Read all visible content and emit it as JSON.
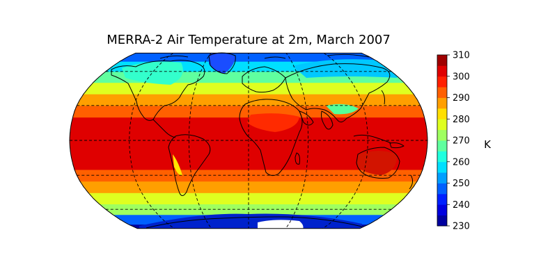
{
  "figure": {
    "title": "MERRA-2 Air Temperature at 2m, March 2007"
  },
  "chart_data": {
    "type": "heatmap",
    "projection": "Robinson",
    "title": "MERRA-2 Air Temperature at 2m, March 2007",
    "variable": "Air Temperature at 2m",
    "colormap": "jet",
    "colorbar": {
      "label": "K",
      "ticks": [
        "230",
        "240",
        "250",
        "260",
        "270",
        "280",
        "290",
        "300",
        "310"
      ],
      "range": [
        230,
        310
      ],
      "levels": [
        230,
        235,
        240,
        245,
        250,
        255,
        260,
        265,
        270,
        275,
        280,
        285,
        290,
        295,
        300,
        305,
        310
      ],
      "placement": "right"
    },
    "gridlines": {
      "parallels_deg": [
        -60,
        -30,
        0,
        30,
        60
      ],
      "meridians_deg": [
        -120,
        -60,
        0,
        60,
        120
      ],
      "style": "dashed"
    },
    "zonal_bands": [
      {
        "lat_range": [
          -90,
          -75
        ],
        "value": 232
      },
      {
        "lat_range": [
          -75,
          -65
        ],
        "value": 248
      },
      {
        "lat_range": [
          -65,
          -55
        ],
        "value": 270
      },
      {
        "lat_range": [
          -55,
          -45
        ],
        "value": 278
      },
      {
        "lat_range": [
          -45,
          -35
        ],
        "value": 286
      },
      {
        "lat_range": [
          -35,
          -25
        ],
        "value": 292
      },
      {
        "lat_range": [
          -25,
          20
        ],
        "value": 300
      },
      {
        "lat_range": [
          20,
          30
        ],
        "value": 294
      },
      {
        "lat_range": [
          30,
          40
        ],
        "value": 287
      },
      {
        "lat_range": [
          40,
          50
        ],
        "value": 278
      },
      {
        "lat_range": [
          50,
          60
        ],
        "value": 268
      },
      {
        "lat_range": [
          60,
          70
        ],
        "value": 258
      },
      {
        "lat_range": [
          70,
          90
        ],
        "value": 247
      }
    ],
    "colors": {
      "ocean_equator": "#e41a00",
      "tropics": "#ff4400",
      "subtropics": "#ff9900",
      "mid_lat": "#ffe600",
      "cool": "#7fff7f",
      "cold": "#00bfff",
      "polar": "#0033ff",
      "antarctic_core": "#ffffff"
    }
  }
}
